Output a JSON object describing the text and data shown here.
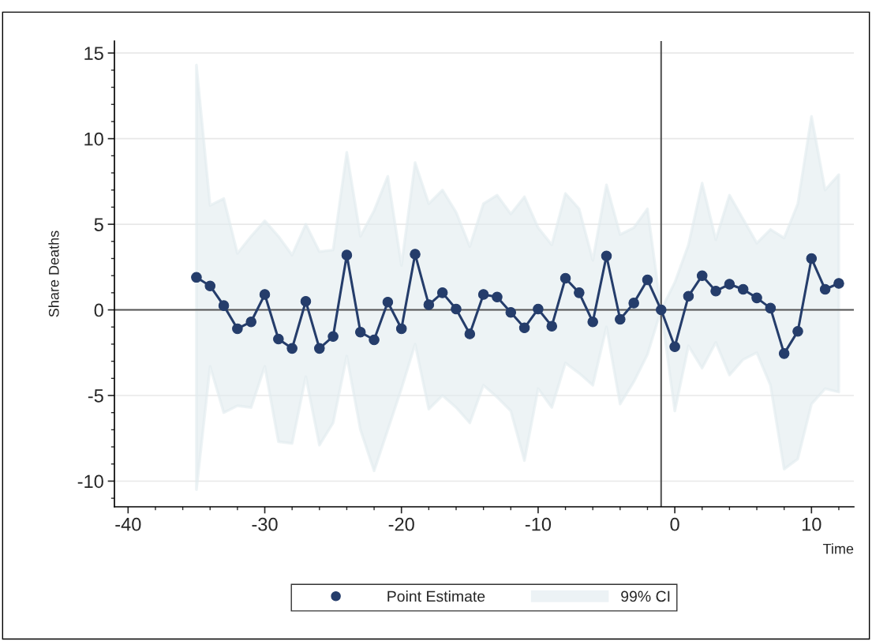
{
  "chart_data": {
    "type": "line",
    "xlabel": "Time",
    "ylabel": "Share Deaths",
    "x": [
      -35,
      -34,
      -33,
      -32,
      -31,
      -30,
      -29,
      -28,
      -27,
      -26,
      -25,
      -24,
      -23,
      -22,
      -21,
      -20,
      -19,
      -18,
      -17,
      -16,
      -15,
      -14,
      -13,
      -12,
      -11,
      -10,
      -9,
      -8,
      -7,
      -6,
      -5,
      -4,
      -3,
      -2,
      -1,
      0,
      1,
      2,
      3,
      4,
      5,
      6,
      7,
      8,
      9,
      10,
      11,
      12
    ],
    "series": [
      {
        "name": "Point Estimate",
        "type": "line",
        "color": "#253d6b",
        "values": [
          1.9,
          1.4,
          0.25,
          -1.1,
          -0.7,
          0.9,
          -1.7,
          -2.25,
          0.5,
          -2.25,
          -1.55,
          3.2,
          -1.3,
          -1.75,
          0.45,
          -1.1,
          3.25,
          0.3,
          1.0,
          0.05,
          -1.4,
          0.9,
          0.75,
          -0.15,
          -1.05,
          0.05,
          -0.95,
          1.85,
          1.0,
          -0.7,
          3.15,
          -0.55,
          0.4,
          1.75,
          0,
          -2.15,
          0.8,
          2.0,
          1.1,
          1.5,
          1.2,
          0.7,
          0.1,
          -2.55,
          -1.25,
          3.0,
          1.2,
          1.55
        ],
        "upper": [
          14.3,
          6.1,
          6.5,
          3.3,
          4.3,
          5.2,
          4.3,
          3.2,
          5.0,
          3.4,
          3.5,
          9.2,
          4.3,
          5.8,
          7.8,
          2.6,
          8.6,
          6.2,
          7.0,
          5.7,
          3.7,
          6.2,
          6.7,
          5.6,
          6.6,
          4.8,
          3.8,
          6.8,
          5.9,
          2.9,
          7.3,
          4.4,
          4.8,
          5.9,
          0,
          1.6,
          3.8,
          7.4,
          4.1,
          6.7,
          5.3,
          3.9,
          4.7,
          4.2,
          6.2,
          11.3,
          7.0,
          7.9
        ],
        "lower": [
          -10.5,
          -3.3,
          -6.0,
          -5.6,
          -5.7,
          -3.3,
          -7.7,
          -7.8,
          -3.9,
          -7.9,
          -6.6,
          -2.7,
          -7.0,
          -9.4,
          -7.0,
          -4.6,
          -2.0,
          -5.8,
          -5.0,
          -5.7,
          -6.6,
          -4.4,
          -5.1,
          -5.9,
          -8.8,
          -4.6,
          -5.7,
          -3.1,
          -3.7,
          -4.4,
          -1.0,
          -5.5,
          -4.2,
          -2.6,
          0,
          -5.9,
          -2.1,
          -3.4,
          -1.9,
          -3.8,
          -2.9,
          -2.5,
          -4.4,
          -9.3,
          -8.7,
          -5.5,
          -4.6,
          -4.8
        ]
      }
    ],
    "annotations": [
      "99% CI"
    ],
    "xlim": [
      -41,
      13.1
    ],
    "ylim": [
      -11.5,
      15.7
    ],
    "xticks": [
      -40,
      -30,
      -20,
      -10,
      0,
      10
    ],
    "yticks": [
      -10,
      -5,
      0,
      5,
      10,
      15
    ],
    "ref_lines": [
      {
        "axis": "y",
        "value": 0,
        "color": "#555555"
      },
      {
        "axis": "x",
        "value": -1,
        "color": "#555555"
      }
    ],
    "grid": "y",
    "legend": "bottom",
    "marker": "circle",
    "line_style": "solid"
  }
}
